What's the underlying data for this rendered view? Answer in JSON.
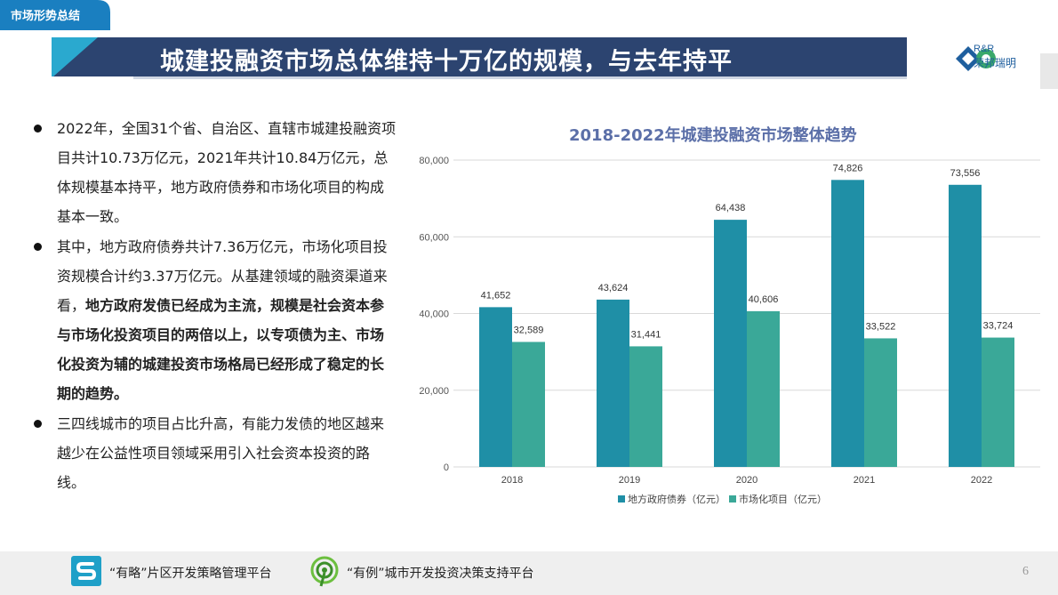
{
  "header": {
    "tag": "市场形势总结",
    "title": "城建投融资市场总体维持十万亿的规模，与去年持平",
    "logo_en": "R&R",
    "logo_cn": "荣邦瑞明"
  },
  "bullets": [
    {
      "segments": [
        {
          "text": "2022年，全国31个省、自治区、直辖市城建投融资项目共计10.73万亿元，2021年共计10.84万亿元，总体规模基本持平，地方政府债券和市场化项目的构成基本一致。",
          "bold": false
        }
      ]
    },
    {
      "segments": [
        {
          "text": "其中，地方政府债券共计7.36万亿元，市场化项目投资规模合计约3.37万亿元。从基建领域的融资渠道来看，",
          "bold": false
        },
        {
          "text": "地方政府发债已经成为主流，规模是社会资本参与市场化投资项目的两倍以上，以专项债为主、市场化投资为辅的城建投资市场格局已经形成了稳定的长期的趋势。",
          "bold": true
        }
      ]
    },
    {
      "segments": [
        {
          "text": "三四线城市的项目占比升高，有能力发债的地区越来越少在公益性项目领域采用引入社会资本投资的路线。",
          "bold": false
        }
      ]
    }
  ],
  "chart_data": {
    "type": "bar",
    "title": "2018-2022年城建投融资市场整体趋势",
    "categories": [
      "2018",
      "2019",
      "2020",
      "2021",
      "2022"
    ],
    "series": [
      {
        "name": "地方政府债券（亿元）",
        "values": [
          41652,
          43624,
          64438,
          74826,
          73556
        ],
        "color": "#1f8fa6"
      },
      {
        "name": "市场化项目（亿元）",
        "values": [
          32589,
          31441,
          40606,
          33522,
          33724
        ],
        "color": "#3aa898"
      }
    ],
    "value_labels": [
      [
        "41,652",
        "43,624",
        "64,438",
        "74,826",
        "73,556"
      ],
      [
        "32,589",
        "31,441",
        "40,606",
        "33,522",
        "33,724"
      ]
    ],
    "ylim": [
      0,
      80000
    ],
    "yticks": [
      "0",
      "20,000",
      "40,000",
      "60,000",
      "80,000"
    ],
    "ytick_values": [
      0,
      20000,
      40000,
      60000,
      80000
    ],
    "grid": true,
    "legend_position": "bottom"
  },
  "footer": {
    "platform1": "“有略”片区开发策略管理平台",
    "platform2": "“有例”城市开发投资决策支持平台",
    "page_number": "6"
  },
  "colors": {
    "banner_dark": "#2c4470",
    "accent_blue": "#1a7fc0",
    "chart_title": "#5b6fa8"
  }
}
